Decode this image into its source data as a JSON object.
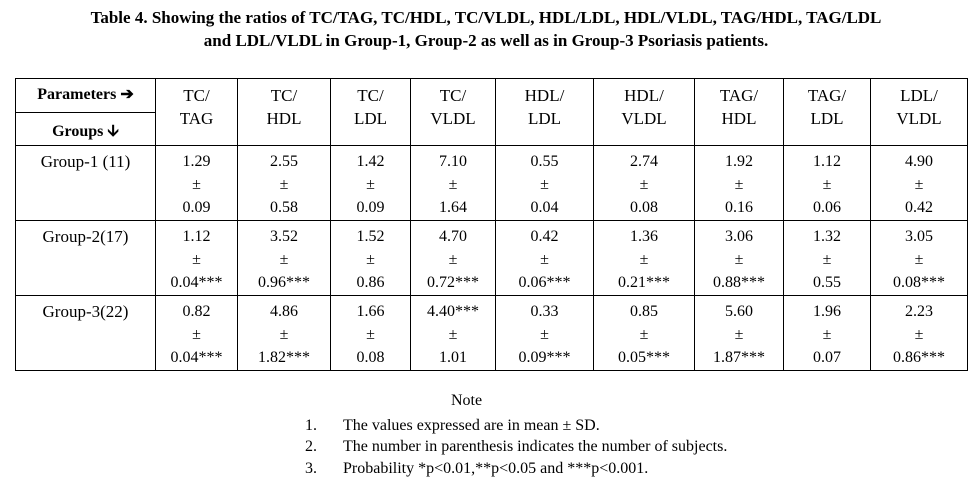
{
  "caption": {
    "line1": "Table 4. Showing the ratios of TC/TAG, TC/HDL, TC/VLDL, HDL/LDL, HDL/VLDL, TAG/HDL, TAG/LDL",
    "line2": "and LDL/VLDL in Group-1, Group-2 as well as in Group-3 Psoriasis patients."
  },
  "table": {
    "corner_top": "Parameters ➔",
    "corner_bottom": "Groups 🡫",
    "columns": [
      {
        "l1": "TC/",
        "l2": "TAG"
      },
      {
        "l1": "TC/",
        "l2": "HDL"
      },
      {
        "l1": "TC/",
        "l2": "LDL"
      },
      {
        "l1": "TC/",
        "l2": "VLDL"
      },
      {
        "l1": "HDL/",
        "l2": "LDL"
      },
      {
        "l1": "HDL/",
        "l2": "VLDL"
      },
      {
        "l1": "TAG/",
        "l2": "HDL"
      },
      {
        "l1": "TAG/",
        "l2": "LDL"
      },
      {
        "l1": "LDL/",
        "l2": "VLDL"
      }
    ],
    "rows": [
      {
        "group": "Group-1 (11)",
        "cells": [
          {
            "mean": "1.29",
            "pm": "±",
            "sd": "0.09"
          },
          {
            "mean": "2.55",
            "pm": "±",
            "sd": "0.58"
          },
          {
            "mean": "1.42",
            "pm": "±",
            "sd": "0.09"
          },
          {
            "mean": "7.10",
            "pm": "±",
            "sd": "1.64"
          },
          {
            "mean": "0.55",
            "pm": "±",
            "sd": "0.04"
          },
          {
            "mean": "2.74",
            "pm": "±",
            "sd": "0.08"
          },
          {
            "mean": "1.92",
            "pm": "±",
            "sd": "0.16"
          },
          {
            "mean": "1.12",
            "pm": "±",
            "sd": "0.06"
          },
          {
            "mean": "4.90",
            "pm": "±",
            "sd": "0.42"
          }
        ]
      },
      {
        "group": "Group-2(17)",
        "cells": [
          {
            "mean": "1.12",
            "pm": "±",
            "sd": "0.04***"
          },
          {
            "mean": "3.52",
            "pm": "±",
            "sd": "0.96***"
          },
          {
            "mean": "1.52",
            "pm": "±",
            "sd": "0.86"
          },
          {
            "mean": "4.70",
            "pm": "±",
            "sd": "0.72***"
          },
          {
            "mean": "0.42",
            "pm": "±",
            "sd": "0.06***"
          },
          {
            "mean": "1.36",
            "pm": "±",
            "sd": "0.21***"
          },
          {
            "mean": "3.06",
            "pm": "±",
            "sd": "0.88***"
          },
          {
            "mean": "1.32",
            "pm": "±",
            "sd": "0.55"
          },
          {
            "mean": "3.05",
            "pm": "±",
            "sd": "0.08***"
          }
        ]
      },
      {
        "group": "Group-3(22)",
        "cells": [
          {
            "mean": "0.82",
            "pm": "±",
            "sd": "0.04***"
          },
          {
            "mean": "4.86",
            "pm": "±",
            "sd": "1.82***"
          },
          {
            "mean": "1.66",
            "pm": "±",
            "sd": "0.08"
          },
          {
            "mean": "4.40***",
            "pm": "±",
            "sd": "1.01"
          },
          {
            "mean": "0.33",
            "pm": "±",
            "sd": "0.09***"
          },
          {
            "mean": "0.85",
            "pm": "±",
            "sd": "0.05***"
          },
          {
            "mean": "5.60",
            "pm": "±",
            "sd": "1.87***"
          },
          {
            "mean": "1.96",
            "pm": "±",
            "sd": "0.07"
          },
          {
            "mean": "2.23",
            "pm": "±",
            "sd": "0.86***"
          }
        ]
      }
    ]
  },
  "note": {
    "title": "Note",
    "items": [
      {
        "num": "1.",
        "text": "The values expressed are in mean ± SD."
      },
      {
        "num": "2.",
        "text": "The number in parenthesis indicates the number of subjects."
      },
      {
        "num": "3.",
        "text": "Probability *p<0.01,**p<0.05 and ***p<0.001."
      }
    ]
  }
}
